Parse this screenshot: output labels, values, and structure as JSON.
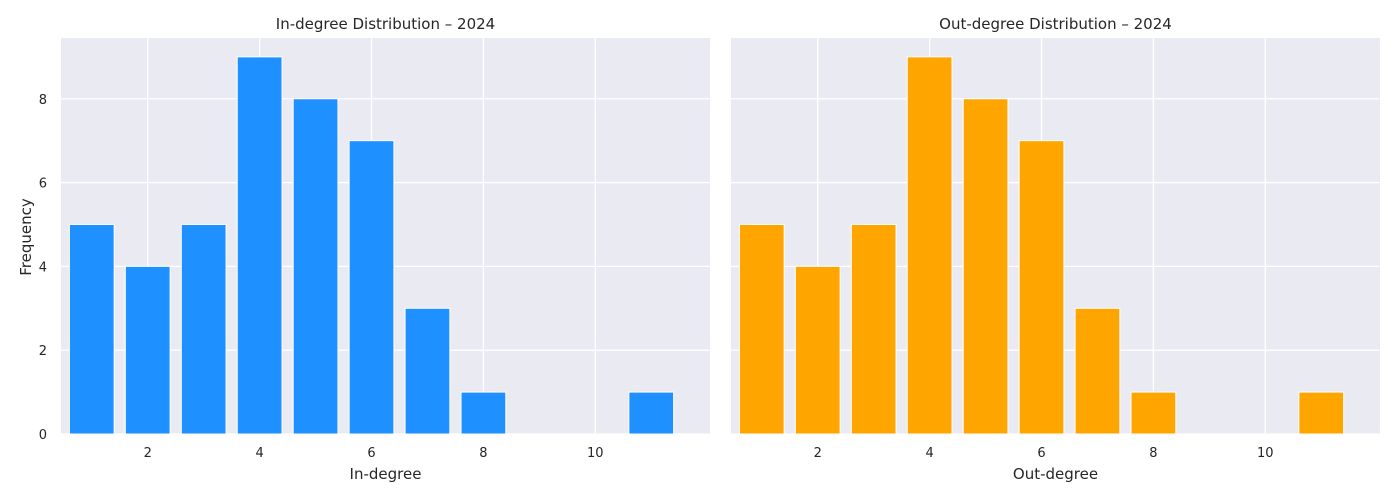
{
  "chart_data": [
    {
      "type": "bar",
      "title": "In-degree Distribution – 2024",
      "xlabel": "In-degree",
      "ylabel": "Frequency",
      "x": [
        1,
        2,
        3,
        4,
        5,
        6,
        7,
        8,
        11
      ],
      "values": [
        5,
        4,
        5,
        9,
        8,
        7,
        3,
        1,
        1
      ],
      "color": "#1E90FF",
      "xlim": [
        0.45,
        12.05
      ],
      "ylim": [
        0,
        9.45
      ],
      "xticks": [
        2,
        4,
        6,
        8,
        10
      ],
      "yticks": [
        0,
        2,
        4,
        6,
        8
      ],
      "grid": true
    },
    {
      "type": "bar",
      "title": "Out-degree Distribution – 2024",
      "xlabel": "Out-degree",
      "ylabel": "",
      "x": [
        1,
        2,
        3,
        4,
        5,
        6,
        7,
        8,
        11
      ],
      "values": [
        5,
        4,
        5,
        9,
        8,
        7,
        3,
        1,
        1
      ],
      "color": "#FFA500",
      "xlim": [
        0.45,
        12.05
      ],
      "ylim": [
        0,
        9.45
      ],
      "xticks": [
        2,
        4,
        6,
        8,
        10
      ],
      "yticks": [
        0,
        2,
        4,
        6,
        8
      ],
      "grid": true,
      "sharey": true
    }
  ],
  "style": {
    "plot_background": "#EAEAF2",
    "grid_color": "#FFFFFF"
  }
}
